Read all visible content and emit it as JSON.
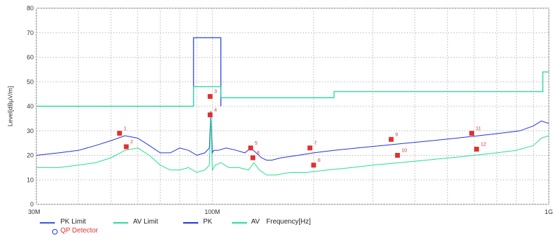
{
  "chart_data": {
    "type": "line",
    "y_axis_label": "Level[dBµV/m]",
    "x_axis_label": "Frequency[Hz]",
    "x_scale": "log",
    "xlim": [
      30,
      1000
    ],
    "ylim": [
      0,
      80
    ],
    "y_ticks": [
      "0",
      "10",
      "20",
      "30",
      "40",
      "50",
      "60",
      "70",
      "80"
    ],
    "x_tick_labels": [
      {
        "value": 30,
        "label": "30M"
      },
      {
        "value": 100,
        "label": "100M"
      },
      {
        "value": 1000,
        "label": "1G"
      }
    ],
    "grid": true,
    "colors": {
      "pk_limit": "#3a4ee8",
      "av_limit": "#2fd8a0",
      "pk": "#2030e0",
      "av": "#20e090",
      "marker": "#e03030"
    },
    "series": [
      {
        "name": "PK Limit",
        "x": [
          88,
          88,
          96,
          96,
          106,
          106
        ],
        "y": [
          40,
          68,
          68,
          68,
          68,
          40
        ]
      },
      {
        "name": "AV Limit",
        "x": [
          30,
          88,
          88,
          106,
          106,
          230,
          230,
          960,
          960,
          1000
        ],
        "y": [
          40,
          40,
          48,
          48,
          43.5,
          43.5,
          46,
          46,
          54,
          54
        ]
      },
      {
        "name": "PK",
        "x": [
          30,
          35,
          40,
          45,
          50,
          55,
          60,
          65,
          70,
          75,
          80,
          85,
          90,
          95,
          98,
          99,
          100,
          101,
          104,
          110,
          118,
          125,
          130,
          135,
          140,
          145,
          150,
          160,
          180,
          200,
          230,
          270,
          320,
          380,
          450,
          530,
          620,
          720,
          820,
          900,
          950,
          1000
        ],
        "y": [
          20,
          21,
          22,
          24,
          26,
          28,
          27,
          24,
          21,
          21,
          23,
          22,
          20,
          21,
          23,
          38,
          21,
          22,
          22,
          23,
          22,
          21,
          23,
          21,
          19,
          18,
          18,
          19,
          20,
          21,
          22,
          23,
          24,
          25,
          26,
          27,
          28,
          29,
          30,
          32,
          34,
          33
        ]
      },
      {
        "name": "AV",
        "x": [
          30,
          35,
          40,
          45,
          50,
          55,
          60,
          65,
          70,
          75,
          80,
          85,
          90,
          95,
          98,
          99,
          100,
          102,
          106,
          112,
          120,
          128,
          133,
          138,
          145,
          155,
          170,
          190,
          220,
          260,
          300,
          360,
          430,
          510,
          600,
          700,
          800,
          900,
          950,
          1000
        ],
        "y": [
          15,
          15,
          16,
          17,
          19,
          22,
          23,
          20,
          16,
          14,
          14,
          15,
          13,
          14,
          16,
          36,
          14,
          16,
          17,
          15,
          15,
          14,
          17,
          14,
          12,
          12,
          13,
          13,
          14,
          15,
          16,
          17,
          18,
          19,
          20,
          21,
          22,
          24,
          27,
          28
        ]
      }
    ],
    "qp_markers": [
      {
        "label": "1",
        "x": 53,
        "y": 29
      },
      {
        "label": "2",
        "x": 55.5,
        "y": 23.5
      },
      {
        "label": "3",
        "x": 98.5,
        "y": 44
      },
      {
        "label": "4",
        "x": 98.5,
        "y": 36.5
      },
      {
        "label": "5",
        "x": 130,
        "y": 23
      },
      {
        "label": "6",
        "x": 132,
        "y": 19
      },
      {
        "label": "7",
        "x": 195,
        "y": 23
      },
      {
        "label": "8",
        "x": 200,
        "y": 16
      },
      {
        "label": "9",
        "x": 340,
        "y": 26.5
      },
      {
        "label": "10",
        "x": 355,
        "y": 20
      },
      {
        "label": "11",
        "x": 590,
        "y": 29
      },
      {
        "label": "12",
        "x": 610,
        "y": 22.5
      }
    ]
  },
  "legend": {
    "pk_limit": "PK Limit",
    "av_limit": "AV Limit",
    "pk": "PK",
    "av": "AV",
    "frequency": "Frequency[Hz]",
    "qp_detector": "QP Detector"
  }
}
